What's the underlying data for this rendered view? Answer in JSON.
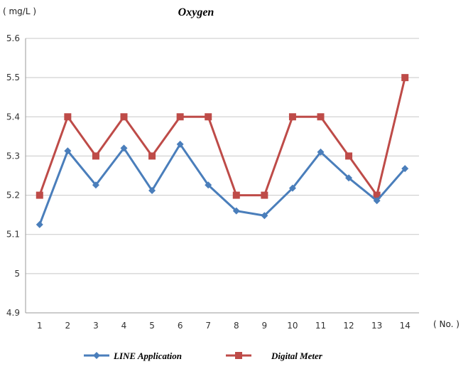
{
  "chart_data": {
    "type": "line",
    "title": "Oxygen",
    "ylabel": "( mg/L )",
    "xlabel": "( No. )",
    "x": [
      1,
      2,
      3,
      4,
      5,
      6,
      7,
      8,
      9,
      10,
      11,
      12,
      13,
      14
    ],
    "ylim": [
      4.9,
      5.6
    ],
    "yticks": [
      4.9,
      5,
      5.1,
      5.2,
      5.3,
      5.4,
      5.5,
      5.6
    ],
    "ytick_labels": [
      "4.9",
      "5",
      "5.1",
      "5.2",
      "5.3",
      "5.4",
      "5.5",
      "5.6"
    ],
    "grid": true,
    "legend_position": "bottom",
    "series": [
      {
        "name": "LINE Application",
        "color": "#4a7ebb",
        "marker": "diamond",
        "values": [
          5.125,
          5.313,
          5.226,
          5.32,
          5.212,
          5.33,
          5.226,
          5.16,
          5.148,
          5.218,
          5.31,
          5.244,
          5.186,
          5.268
        ]
      },
      {
        "name": "Digital Meter",
        "color": "#be4b48",
        "marker": "square",
        "values": [
          5.2,
          5.4,
          5.3,
          5.4,
          5.3,
          5.4,
          5.4,
          5.2,
          5.2,
          5.4,
          5.4,
          5.3,
          5.2,
          5.5
        ]
      }
    ]
  }
}
